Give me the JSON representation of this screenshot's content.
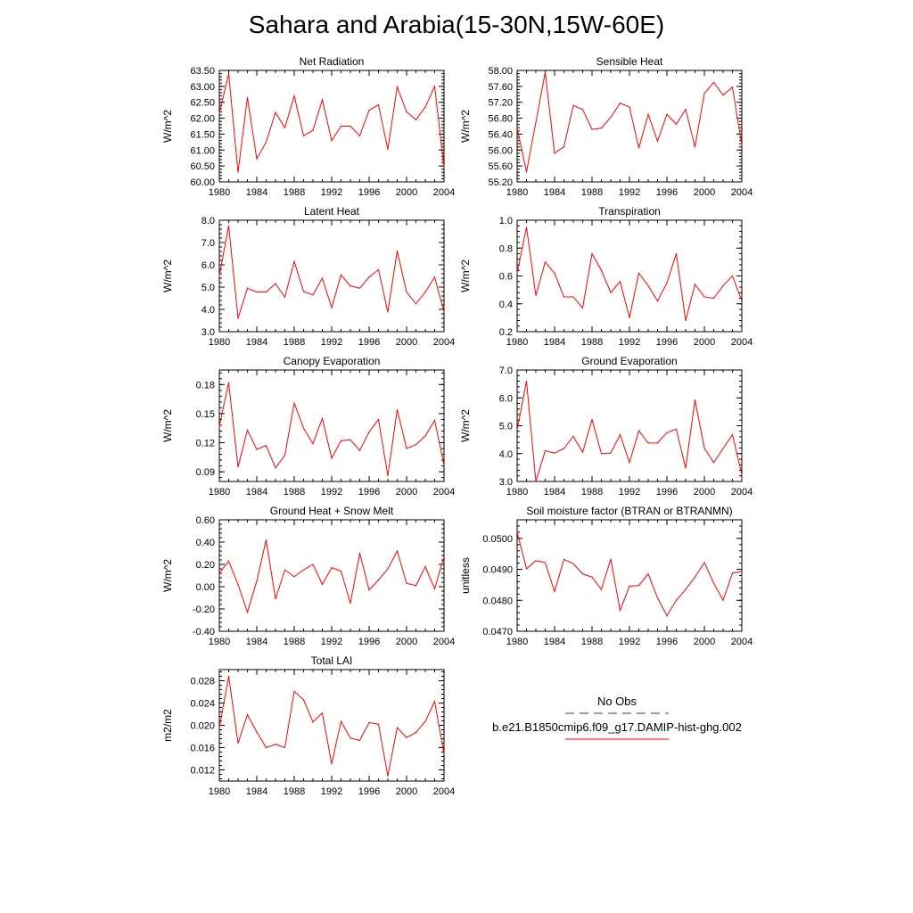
{
  "title": "Sahara and Arabia(15-30N,15W-60E)",
  "colors": {
    "model": "#ff0000",
    "obs": "#3a3aa8"
  },
  "legend": {
    "obs_label": "No Obs",
    "model_label": "b.e21.B1850cmip6.f09_g17.DAMIP-hist-ghg.002"
  },
  "chart_data": [
    {
      "type": "line",
      "title": "Net Radiation",
      "xlabel": "",
      "ylabel": "W/m^2",
      "xlim": [
        1980,
        2004
      ],
      "ylim": [
        60.0,
        63.5
      ],
      "xticks": [
        1980,
        1984,
        1988,
        1992,
        1996,
        2000,
        2004
      ],
      "yticks": [
        60.0,
        60.5,
        61.0,
        61.5,
        62.0,
        62.5,
        63.0,
        63.5
      ],
      "yticklabels": [
        "60.00",
        "60.50",
        "61.00",
        "61.50",
        "62.00",
        "62.50",
        "63.00",
        "63.50"
      ],
      "x": [
        1980,
        1981,
        1982,
        1983,
        1984,
        1985,
        1986,
        1987,
        1988,
        1989,
        1990,
        1991,
        1992,
        1993,
        1994,
        1995,
        1996,
        1997,
        1998,
        1999,
        2000,
        2001,
        2002,
        2003,
        2004
      ],
      "series": [
        {
          "values": [
            62.15,
            63.4,
            60.3,
            62.65,
            60.72,
            61.25,
            62.18,
            61.7,
            62.7,
            61.45,
            61.62,
            62.58,
            61.3,
            61.75,
            61.75,
            61.45,
            62.25,
            62.42,
            61.02,
            62.98,
            62.2,
            61.95,
            62.35,
            63.0,
            60.45
          ]
        }
      ]
    },
    {
      "type": "line",
      "title": "Sensible Heat",
      "xlabel": "",
      "ylabel": "W/m^2",
      "xlim": [
        1980,
        2004
      ],
      "ylim": [
        55.2,
        58.0
      ],
      "xticks": [
        1980,
        1984,
        1988,
        1992,
        1996,
        2000,
        2004
      ],
      "yticks": [
        55.2,
        55.6,
        56.0,
        56.4,
        56.8,
        57.2,
        57.6,
        58.0
      ],
      "yticklabels": [
        "55.20",
        "55.60",
        "56.00",
        "56.40",
        "56.80",
        "57.20",
        "57.60",
        "58.00"
      ],
      "x": [
        1980,
        1981,
        1982,
        1983,
        1984,
        1985,
        1986,
        1987,
        1988,
        1989,
        1990,
        1991,
        1992,
        1993,
        1994,
        1995,
        1996,
        1997,
        1998,
        1999,
        2000,
        2001,
        2002,
        2003,
        2004
      ],
      "series": [
        {
          "values": [
            56.55,
            55.45,
            56.7,
            57.95,
            55.92,
            56.08,
            57.12,
            57.02,
            56.52,
            56.55,
            56.82,
            57.18,
            57.08,
            56.05,
            56.9,
            56.22,
            56.9,
            56.65,
            57.02,
            56.08,
            57.42,
            57.7,
            57.38,
            57.58,
            56.12
          ]
        }
      ]
    },
    {
      "type": "line",
      "title": "Latent Heat",
      "xlabel": "",
      "ylabel": "W/m^2",
      "xlim": [
        1980,
        2004
      ],
      "ylim": [
        3.0,
        8.0
      ],
      "xticks": [
        1980,
        1984,
        1988,
        1992,
        1996,
        2000,
        2004
      ],
      "yticks": [
        3.0,
        4.0,
        5.0,
        6.0,
        7.0,
        8.0
      ],
      "yticklabels": [
        "3.0",
        "4.0",
        "5.0",
        "6.0",
        "7.0",
        "8.0"
      ],
      "x": [
        1980,
        1981,
        1982,
        1983,
        1984,
        1985,
        1986,
        1987,
        1988,
        1989,
        1990,
        1991,
        1992,
        1993,
        1994,
        1995,
        1996,
        1997,
        1998,
        1999,
        2000,
        2001,
        2002,
        2003,
        2004
      ],
      "series": [
        {
          "values": [
            5.5,
            7.75,
            3.6,
            4.95,
            4.78,
            4.78,
            5.15,
            4.55,
            6.15,
            4.8,
            4.65,
            5.4,
            4.08,
            5.55,
            5.05,
            4.95,
            5.45,
            5.78,
            3.88,
            6.62,
            4.78,
            4.25,
            4.78,
            5.45,
            3.88
          ]
        }
      ]
    },
    {
      "type": "line",
      "title": "Transpiration",
      "xlabel": "",
      "ylabel": "W/m^2",
      "xlim": [
        1980,
        2004
      ],
      "ylim": [
        0.2,
        1.0
      ],
      "xticks": [
        1980,
        1984,
        1988,
        1992,
        1996,
        2000,
        2004
      ],
      "yticks": [
        0.2,
        0.4,
        0.6,
        0.8,
        1.0
      ],
      "yticklabels": [
        "0.2",
        "0.4",
        "0.6",
        "0.8",
        "1.0"
      ],
      "x": [
        1980,
        1981,
        1982,
        1983,
        1984,
        1985,
        1986,
        1987,
        1988,
        1989,
        1990,
        1991,
        1992,
        1993,
        1994,
        1995,
        1996,
        1997,
        1998,
        1999,
        2000,
        2001,
        2002,
        2003,
        2004
      ],
      "series": [
        {
          "values": [
            0.62,
            0.95,
            0.46,
            0.7,
            0.62,
            0.45,
            0.45,
            0.37,
            0.76,
            0.64,
            0.48,
            0.56,
            0.3,
            0.62,
            0.53,
            0.42,
            0.55,
            0.76,
            0.28,
            0.54,
            0.45,
            0.44,
            0.53,
            0.6,
            0.42
          ]
        }
      ]
    },
    {
      "type": "line",
      "title": "Canopy Evaporation",
      "xlabel": "",
      "ylabel": "W/m^2",
      "xlim": [
        1980,
        2004
      ],
      "ylim": [
        0.08,
        0.195
      ],
      "xticks": [
        1980,
        1984,
        1988,
        1992,
        1996,
        2000,
        2004
      ],
      "yticks": [
        0.09,
        0.12,
        0.15,
        0.18
      ],
      "yticklabels": [
        "0.09",
        "0.12",
        "0.15",
        "0.18"
      ],
      "x": [
        1980,
        1981,
        1982,
        1983,
        1984,
        1985,
        1986,
        1987,
        1988,
        1989,
        1990,
        1991,
        1992,
        1993,
        1994,
        1995,
        1996,
        1997,
        1998,
        1999,
        2000,
        2001,
        2002,
        2003,
        2004
      ],
      "series": [
        {
          "values": [
            0.137,
            0.182,
            0.095,
            0.133,
            0.113,
            0.117,
            0.094,
            0.107,
            0.161,
            0.135,
            0.119,
            0.145,
            0.104,
            0.122,
            0.123,
            0.112,
            0.131,
            0.144,
            0.086,
            0.154,
            0.114,
            0.118,
            0.127,
            0.143,
            0.097
          ]
        }
      ]
    },
    {
      "type": "line",
      "title": "Ground Evaporation",
      "xlabel": "",
      "ylabel": "W/m^2",
      "xlim": [
        1980,
        2004
      ],
      "ylim": [
        3.0,
        7.0
      ],
      "xticks": [
        1980,
        1984,
        1988,
        1992,
        1996,
        2000,
        2004
      ],
      "yticks": [
        3.0,
        4.0,
        5.0,
        6.0,
        7.0
      ],
      "yticklabels": [
        "3.0",
        "4.0",
        "5.0",
        "6.0",
        "7.0"
      ],
      "x": [
        1980,
        1981,
        1982,
        1983,
        1984,
        1985,
        1986,
        1987,
        1988,
        1989,
        1990,
        1991,
        1992,
        1993,
        1994,
        1995,
        1996,
        1997,
        1998,
        1999,
        2000,
        2001,
        2002,
        2003,
        2004
      ],
      "series": [
        {
          "values": [
            4.85,
            6.6,
            3.0,
            4.1,
            4.02,
            4.18,
            4.62,
            4.05,
            5.22,
            4.0,
            4.02,
            4.68,
            3.68,
            4.82,
            4.38,
            4.38,
            4.75,
            4.88,
            3.48,
            5.92,
            4.2,
            3.68,
            4.18,
            4.68,
            3.25
          ]
        }
      ]
    },
    {
      "type": "line",
      "title": "Ground Heat + Snow Melt",
      "xlabel": "",
      "ylabel": "W/m^2",
      "xlim": [
        1980,
        2004
      ],
      "ylim": [
        -0.4,
        0.6
      ],
      "xticks": [
        1980,
        1984,
        1988,
        1992,
        1996,
        2000,
        2004
      ],
      "yticks": [
        -0.4,
        -0.2,
        0.0,
        0.2,
        0.4,
        0.6
      ],
      "yticklabels": [
        "-0.40",
        "-0.20",
        "0.00",
        "0.20",
        "0.40",
        "0.60"
      ],
      "x": [
        1980,
        1981,
        1982,
        1983,
        1984,
        1985,
        1986,
        1987,
        1988,
        1989,
        1990,
        1991,
        1992,
        1993,
        1994,
        1995,
        1996,
        1997,
        1998,
        1999,
        2000,
        2001,
        2002,
        2003,
        2004
      ],
      "series": [
        {
          "values": [
            0.12,
            0.23,
            0.02,
            -0.23,
            0.05,
            0.42,
            -0.11,
            0.15,
            0.09,
            0.15,
            0.2,
            0.02,
            0.17,
            0.14,
            -0.15,
            0.3,
            -0.03,
            0.06,
            0.16,
            0.32,
            0.03,
            0.01,
            0.18,
            -0.02,
            0.27
          ]
        }
      ]
    },
    {
      "type": "line",
      "title": "Soil moisture factor (BTRAN or BTRANMN)",
      "xlabel": "",
      "ylabel": "unitless",
      "xlim": [
        1980,
        2004
      ],
      "ylim": [
        0.047,
        0.0506
      ],
      "xticks": [
        1980,
        1984,
        1988,
        1992,
        1996,
        2000,
        2004
      ],
      "yticks": [
        0.047,
        0.048,
        0.049,
        0.05
      ],
      "yticklabels": [
        "0.0470",
        "0.0480",
        "0.0490",
        "0.0500"
      ],
      "x": [
        1980,
        1981,
        1982,
        1983,
        1984,
        1985,
        1986,
        1987,
        1988,
        1989,
        1990,
        1991,
        1992,
        1993,
        1994,
        1995,
        1996,
        1997,
        1998,
        1999,
        2000,
        2001,
        2002,
        2003,
        2004
      ],
      "series": [
        {
          "values": [
            0.0502,
            0.04902,
            0.04928,
            0.04922,
            0.04828,
            0.04932,
            0.04918,
            0.04885,
            0.04875,
            0.04835,
            0.04933,
            0.04768,
            0.04845,
            0.04848,
            0.04885,
            0.04808,
            0.0475,
            0.048,
            0.04835,
            0.04875,
            0.04922,
            0.04855,
            0.048,
            0.04888,
            0.04893
          ]
        }
      ]
    },
    {
      "type": "line",
      "title": "Total LAI",
      "xlabel": "",
      "ylabel": "m2/m2",
      "xlim": [
        1980,
        2004
      ],
      "ylim": [
        0.01,
        0.03
      ],
      "xticks": [
        1980,
        1984,
        1988,
        1992,
        1996,
        2000,
        2004
      ],
      "yticks": [
        0.012,
        0.016,
        0.02,
        0.024,
        0.028
      ],
      "yticklabels": [
        "0.012",
        "0.016",
        "0.020",
        "0.024",
        "0.028"
      ],
      "x": [
        1980,
        1981,
        1982,
        1983,
        1984,
        1985,
        1986,
        1987,
        1988,
        1989,
        1990,
        1991,
        1992,
        1993,
        1994,
        1995,
        1996,
        1997,
        1998,
        1999,
        2000,
        2001,
        2002,
        2003,
        2004
      ],
      "series": [
        {
          "values": [
            0.0195,
            0.0288,
            0.0168,
            0.0219,
            0.0188,
            0.016,
            0.0166,
            0.016,
            0.0261,
            0.0246,
            0.0206,
            0.0222,
            0.0131,
            0.0207,
            0.0177,
            0.0173,
            0.0205,
            0.0202,
            0.0109,
            0.0196,
            0.0178,
            0.0187,
            0.0207,
            0.0243,
            0.0148
          ]
        }
      ]
    }
  ]
}
